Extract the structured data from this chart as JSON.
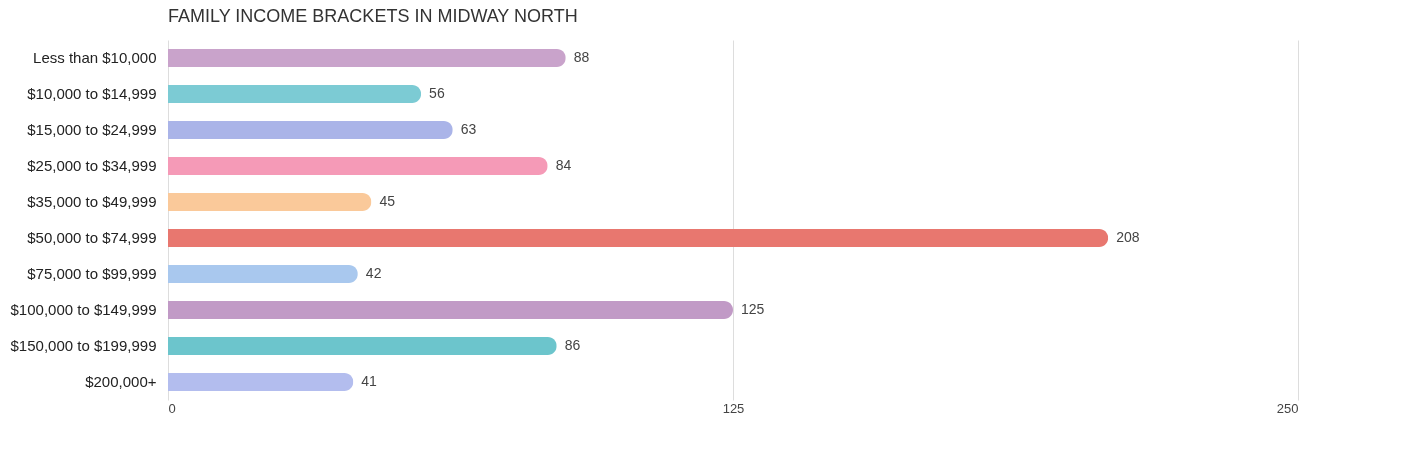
{
  "chart_data": {
    "type": "bar",
    "orientation": "horizontal",
    "title": "FAMILY INCOME BRACKETS IN MIDWAY NORTH",
    "categories": [
      "Less than $10,000",
      "$10,000 to $14,999",
      "$15,000 to $24,999",
      "$25,000 to $34,999",
      "$35,000 to $49,999",
      "$50,000 to $74,999",
      "$75,000 to $99,999",
      "$100,000 to $149,999",
      "$150,000 to $199,999",
      "$200,000+"
    ],
    "values": [
      88,
      56,
      63,
      84,
      45,
      208,
      42,
      125,
      86,
      41
    ],
    "colors": [
      "#c9a3cb",
      "#7ccbd4",
      "#aab4e8",
      "#f59ab7",
      "#fac99a",
      "#e8776f",
      "#a9c8ee",
      "#c19ac6",
      "#6cc5cc",
      "#b3bdee"
    ],
    "xlim": [
      0,
      250
    ],
    "xticks": [
      0,
      125,
      250
    ],
    "grid": "x",
    "data_labels": true
  }
}
